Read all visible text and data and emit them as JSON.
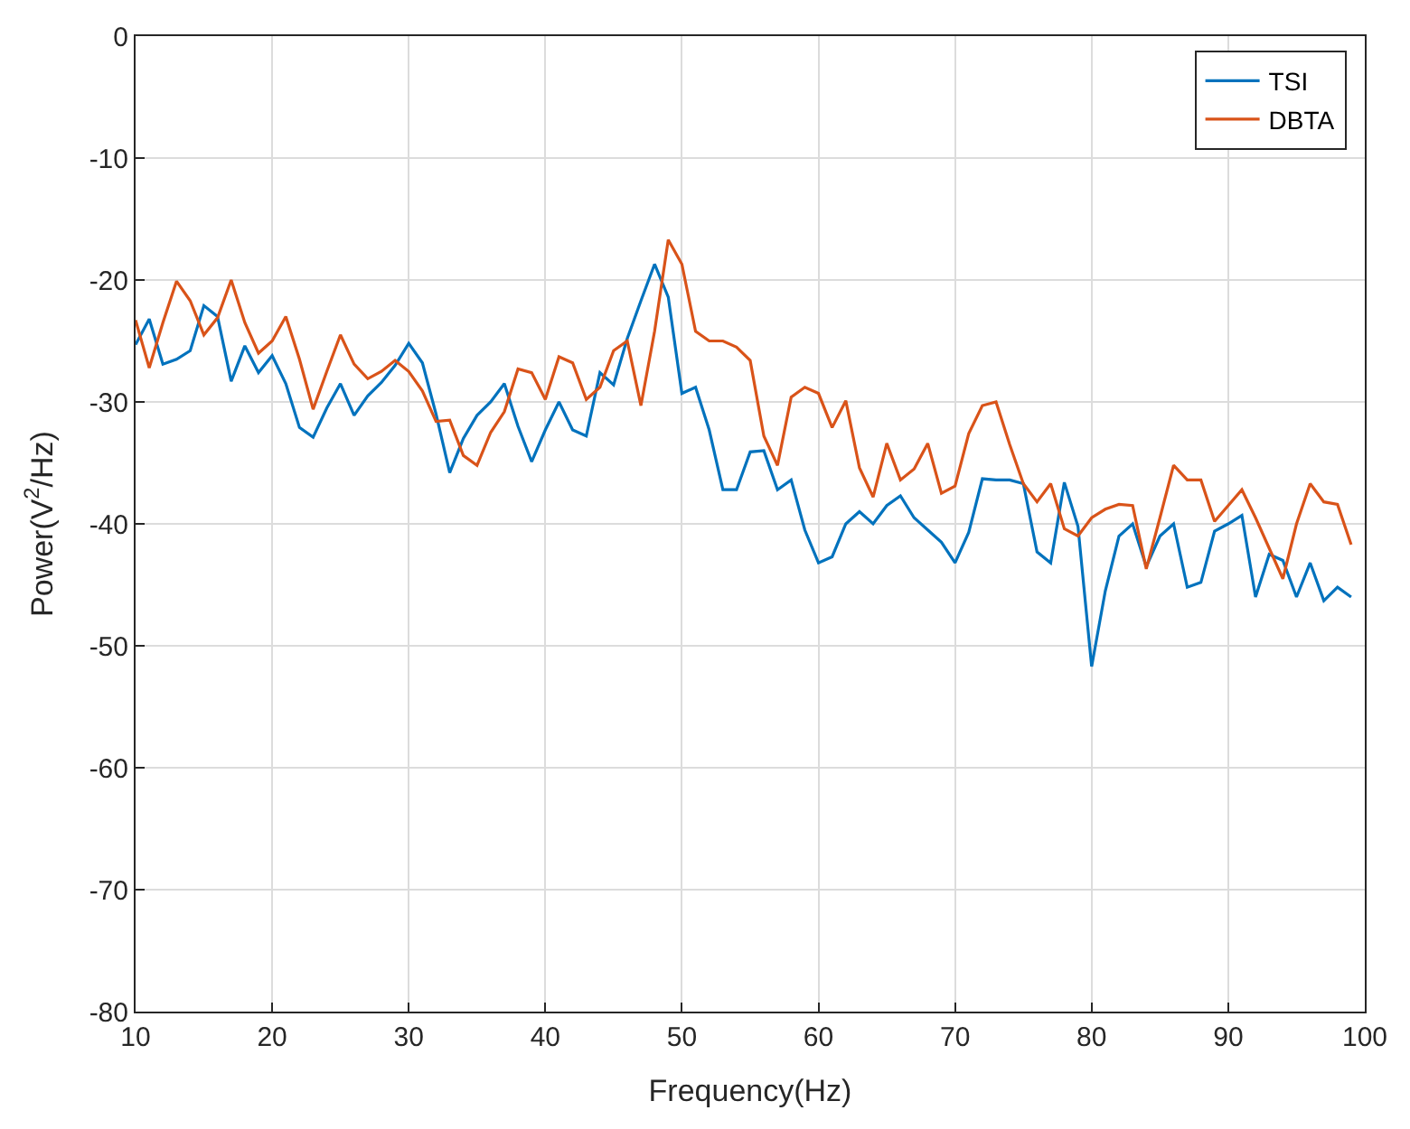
{
  "chart_data": {
    "type": "line",
    "xlabel": "Frequency(Hz)",
    "ylabel": "Power(V$^{2}$/Hz)",
    "x": [
      10,
      11,
      12,
      13,
      14,
      15,
      16,
      17,
      18,
      19,
      20,
      21,
      22,
      23,
      24,
      25,
      26,
      27,
      28,
      29,
      30,
      31,
      32,
      33,
      34,
      35,
      36,
      37,
      38,
      39,
      40,
      41,
      42,
      43,
      44,
      45,
      46,
      47,
      48,
      49,
      50,
      51,
      52,
      53,
      54,
      55,
      56,
      57,
      58,
      59,
      60,
      61,
      62,
      63,
      64,
      65,
      66,
      67,
      68,
      69,
      70,
      71,
      72,
      73,
      74,
      75,
      76,
      77,
      78,
      79,
      80,
      81,
      82,
      83,
      84,
      85,
      86,
      87,
      88,
      89,
      90,
      91,
      92,
      93,
      94,
      95,
      96,
      97,
      98,
      99
    ],
    "series": [
      {
        "name": "TSI",
        "color": "#0072bd",
        "values": [
          -25.3,
          -23.2,
          -26.9,
          -26.5,
          -25.8,
          -22.1,
          -23,
          -28.3,
          -25.4,
          -27.6,
          -26.2,
          -28.5,
          -32.1,
          -32.9,
          -30.5,
          -28.5,
          -31.1,
          -29.5,
          -28.4,
          -27,
          -25.2,
          -26.8,
          -31,
          -35.8,
          -33,
          -31.1,
          -30,
          -28.5,
          -32,
          -34.9,
          -32.3,
          -30,
          -32.3,
          -32.8,
          -27.6,
          -28.6,
          -24.8,
          -21.7,
          -18.7,
          -21.4,
          -29.3,
          -28.8,
          -32.3,
          -37.2,
          -37.2,
          -34.1,
          -34,
          -37.2,
          -36.4,
          -40.5,
          -43.2,
          -42.7,
          -40,
          -39,
          -40,
          -38.5,
          -37.7,
          -39.5,
          -40.5,
          -41.5,
          -43.2,
          -40.7,
          -36.3,
          -36.4,
          -36.4,
          -36.7,
          -42.3,
          -43.2,
          -36.6,
          -40.2,
          -51.7,
          -45.5,
          -41,
          -40,
          -43.5,
          -41,
          -40,
          -45.2,
          -44.8,
          -40.6,
          -40,
          -39.3,
          -46,
          -42.5,
          -43,
          -46,
          -43.2,
          -46.3,
          -45.2,
          -46
        ]
      },
      {
        "name": "DBTA",
        "color": "#d95319",
        "values": [
          -23.3,
          -27.2,
          -23.5,
          -20.1,
          -21.7,
          -24.5,
          -23.1,
          -20,
          -23.5,
          -26,
          -25,
          -23,
          -26.5,
          -30.6,
          -27.5,
          -24.5,
          -26.9,
          -28.1,
          -27.5,
          -26.6,
          -27.5,
          -29.1,
          -31.6,
          -31.5,
          -34.4,
          -35.2,
          -32.5,
          -30.8,
          -27.3,
          -27.6,
          -29.8,
          -26.3,
          -26.8,
          -29.8,
          -28.8,
          -25.8,
          -25,
          -30.3,
          -24.2,
          -16.7,
          -18.7,
          -24.2,
          -25,
          -25,
          -25.5,
          -26.6,
          -32.8,
          -35.2,
          -29.6,
          -28.8,
          -29.3,
          -32.1,
          -29.9,
          -35.4,
          -37.8,
          -33.4,
          -36.4,
          -35.5,
          -33.4,
          -37.5,
          -36.9,
          -32.6,
          -30.3,
          -30,
          -33.5,
          -36.7,
          -38.2,
          -36.7,
          -40.4,
          -41,
          -39.5,
          -38.8,
          -38.4,
          -38.5,
          -43.7,
          -39.5,
          -35.2,
          -36.4,
          -36.4,
          -39.8,
          -38.5,
          -37.2,
          -39.5,
          -42,
          -44.5,
          -40,
          -36.7,
          -38.2,
          -38.4,
          -41.7
        ]
      }
    ],
    "xlim": [
      10,
      100
    ],
    "xticks": [
      10,
      20,
      30,
      40,
      50,
      60,
      70,
      80,
      90,
      100
    ],
    "ylim": [
      -80,
      0
    ],
    "yticks": [
      -80,
      -70,
      -60,
      -50,
      -40,
      -30,
      -20,
      -10,
      0
    ],
    "grid": true,
    "legend": "top right",
    "marker": "none",
    "line_style": "solid"
  }
}
